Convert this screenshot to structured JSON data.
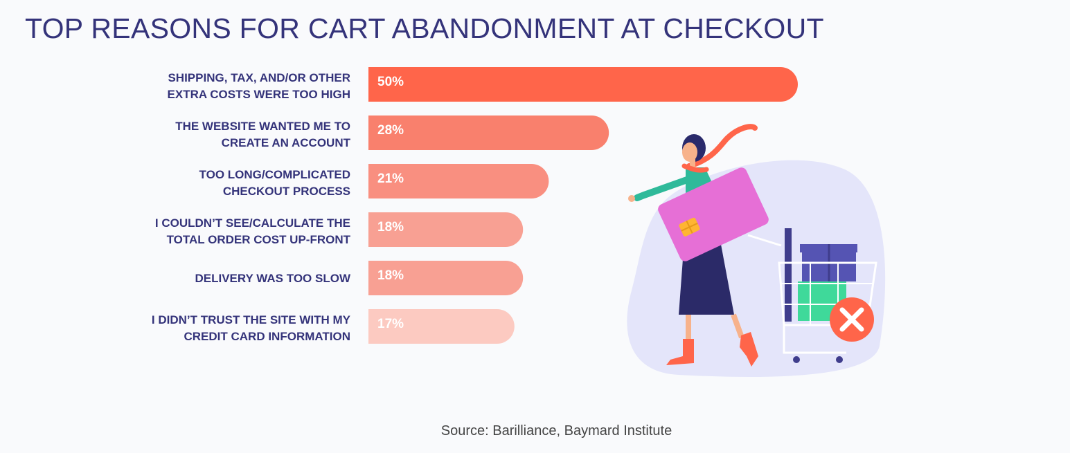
{
  "header": {
    "title": "TOP REASONS FOR CART ABANDONMENT AT CHECKOUT"
  },
  "footer": {
    "source": "Source: Barilliance, Baymard Institute"
  },
  "chart_data": {
    "type": "bar",
    "orientation": "horizontal",
    "title": "TOP REASONS FOR CART ABANDONMENT AT CHECKOUT",
    "categories": [
      [
        "SHIPPING, TAX, AND/OR OTHER",
        "EXTRA COSTS WERE TOO HIGH"
      ],
      [
        "THE WEBSITE WANTED ME TO",
        "CREATE AN ACCOUNT"
      ],
      [
        "TOO LONG/COMPLICATED",
        "CHECKOUT PROCESS"
      ],
      [
        "I COULDN’T SEE/CALCULATE THE",
        "TOTAL ORDER COST UP-FRONT"
      ],
      [
        "DELIVERY WAS TOO SLOW"
      ],
      [
        "I DIDN’T TRUST THE SITE WITH MY",
        "CREDIT CARD INFORMATION"
      ]
    ],
    "values": [
      50,
      28,
      21,
      18,
      18,
      17
    ],
    "value_labels": [
      "50%",
      "28%",
      "21%",
      "18%",
      "18%",
      "17%"
    ],
    "unit": "%",
    "bar_colors": [
      "#ff654a",
      "#f9806d",
      "#f98f80",
      "#f8a093",
      "#f8a093",
      "#fccac1"
    ],
    "xlim": [
      0,
      50
    ],
    "grid": false,
    "legend": "none"
  },
  "colors": {
    "title": "#34337a",
    "label": "#34337a",
    "background": "#f9fafc",
    "blob": "#e4e5fa"
  }
}
